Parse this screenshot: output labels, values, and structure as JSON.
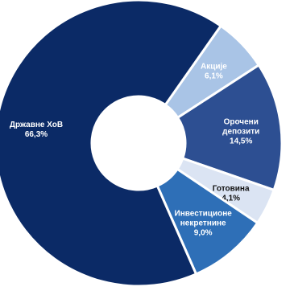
{
  "chart_data": {
    "type": "pie",
    "donut": true,
    "title": "",
    "slices": [
      {
        "label": "Акције",
        "value_label": "6,1%",
        "value": 6.1,
        "color": "#a9c4e6",
        "text_color": "#ffffff"
      },
      {
        "label": "Орочени депозити",
        "value_label": "14,5%",
        "value": 14.5,
        "color": "#2d4f92",
        "text_color": "#ffffff"
      },
      {
        "label": "Готовина",
        "value_label": "4,1%",
        "value": 4.1,
        "color": "#dbe4f3",
        "text_color": "#111111"
      },
      {
        "label": "Инвестиционе некретнине",
        "value_label": "9,0%",
        "value": 9.0,
        "color": "#2e6fb7",
        "text_color": "#ffffff"
      },
      {
        "label": "Државне ХоВ",
        "value_label": "66,3%",
        "value": 66.3,
        "color": "#0b2a66",
        "text_color": "#ffffff"
      }
    ]
  }
}
